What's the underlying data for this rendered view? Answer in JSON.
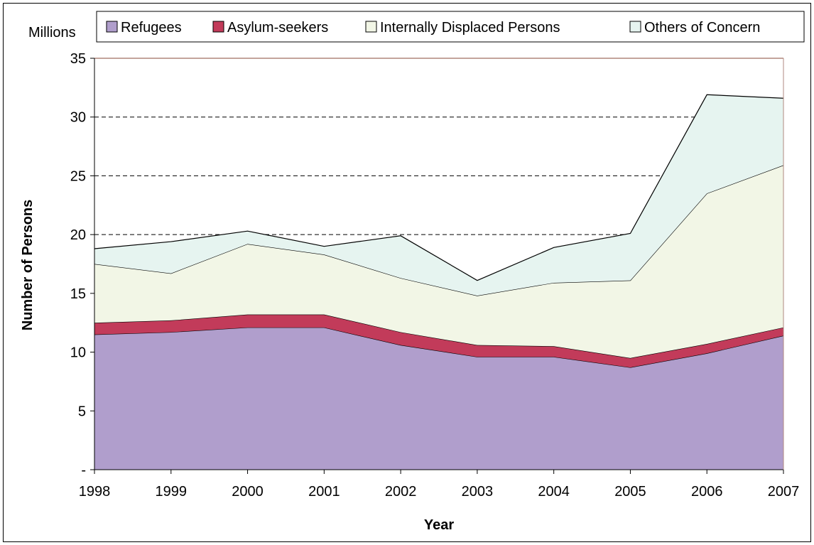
{
  "chart_data": {
    "type": "area",
    "stacked": true,
    "unit_label": "Millions",
    "xlabel": "Year",
    "ylabel": "Number of Persons",
    "ylim": [
      0,
      35
    ],
    "y_ticks": [
      0,
      5,
      10,
      15,
      20,
      25,
      30,
      35
    ],
    "y_tick_labels": [
      "-",
      "5",
      "10",
      "15",
      "20",
      "25",
      "30",
      "35"
    ],
    "categories": [
      "1998",
      "1999",
      "2000",
      "2001",
      "2002",
      "2003",
      "2004",
      "2005",
      "2006",
      "2007"
    ],
    "grid": "dashed horizontal",
    "legend_position": "top",
    "series": [
      {
        "name": "Refugees",
        "color": "#b09ecc",
        "values": [
          11.5,
          11.7,
          12.1,
          12.1,
          10.6,
          9.6,
          9.6,
          8.7,
          9.9,
          11.4
        ]
      },
      {
        "name": "Asylum-seekers",
        "color": "#c23b5a",
        "values": [
          1.0,
          1.0,
          1.1,
          1.1,
          1.1,
          1.0,
          0.9,
          0.8,
          0.8,
          0.7
        ]
      },
      {
        "name": "Internally Displaced Persons",
        "color": "#f2f6e6",
        "values": [
          5.0,
          4.0,
          6.0,
          5.1,
          4.6,
          4.2,
          5.4,
          6.6,
          12.8,
          13.8
        ]
      },
      {
        "name": "Others of Concern",
        "color": "#e6f4f0",
        "values": [
          1.3,
          2.7,
          1.1,
          0.7,
          3.6,
          1.3,
          3.0,
          4.0,
          8.4,
          5.7
        ]
      }
    ]
  }
}
